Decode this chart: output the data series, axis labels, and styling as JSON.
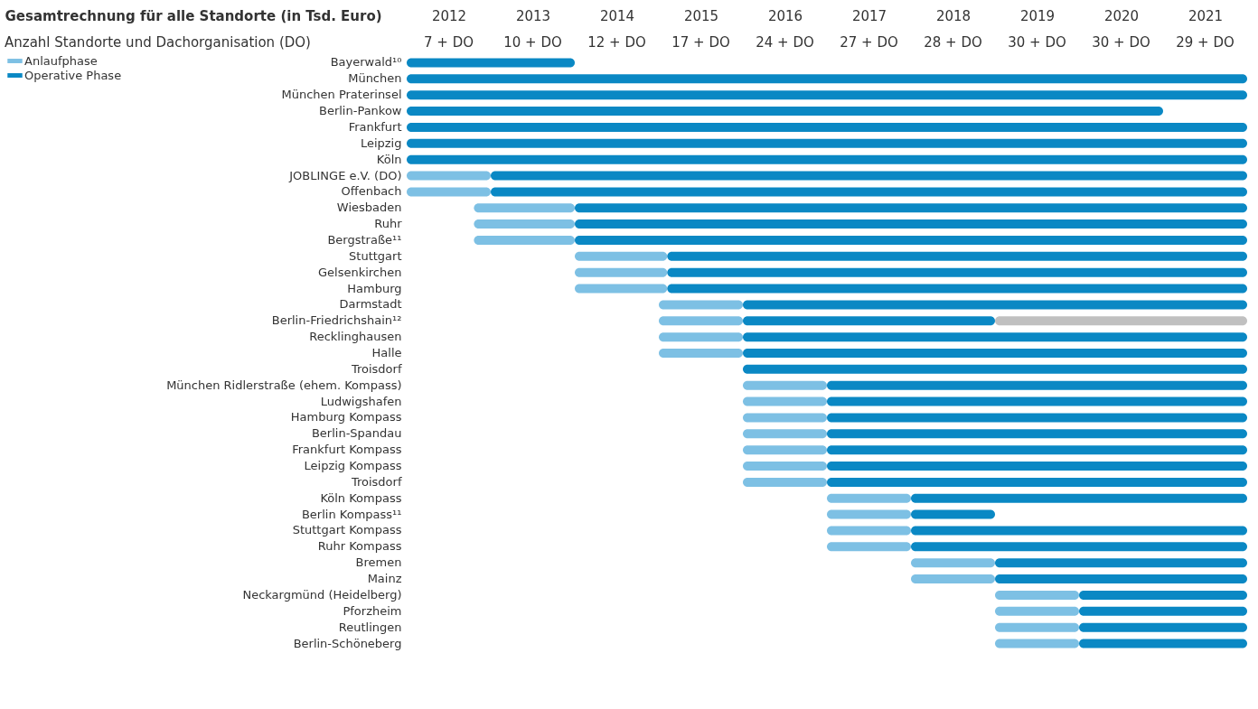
{
  "chart_data": {
    "type": "bar",
    "orientation": "horizontal",
    "xlabel": "Gesamtrechnung für alle Standorte (in Tsd. Euro)",
    "annotations": [
      "Anzahl Standorte und Dachorganisation (DO)",
      "7 + DO",
      "10 + DO",
      "12 + DO",
      "17 + DO",
      "24 + DO",
      "27 + DO",
      "28 + DO",
      "30 + DO",
      "30 + DO",
      "29 + DO"
    ],
    "categories": [
      "Bayerwald¹⁰",
      "München",
      "München Praterinsel",
      "Berlin-Pankow",
      "Frankfurt",
      "Leipzig",
      "Köln",
      "JOBLINGE e.V. (DO)",
      "Offenbach",
      "Wiesbaden",
      "Ruhr",
      "Bergstraße¹¹",
      "Stuttgart",
      "Gelsenkirchen",
      "Hamburg",
      "Darmstadt",
      "Berlin-Friedrichshain¹²",
      "Recklinghausen",
      "Halle",
      "Troisdorf",
      "München Ridlerstraße (ehem. Kompass)",
      "Ludwigshafen",
      "Hamburg Kompass",
      "Berlin-Spandau",
      "Frankfurt Kompass",
      "Leipzig Kompass",
      "Troisdorf",
      "Köln Kompass",
      "Berlin Kompass¹¹",
      "Stuttgart Kompass",
      "Ruhr Kompass",
      "Bremen",
      "Mainz",
      "Neckargmünd (Heidelberg)",
      "Pforzheim",
      "Reutlingen",
      "Berlin-Schöneberg"
    ],
    "xlim": [
      2012,
      2022
    ],
    "xticks": [
      {
        "value": 2012.5,
        "label": "2012"
      },
      {
        "value": 2013.5,
        "label": "2013"
      },
      {
        "value": 2014.5,
        "label": "2014"
      },
      {
        "value": 2015.5,
        "label": "2015"
      },
      {
        "value": 2016.5,
        "label": "2016"
      },
      {
        "value": 2017.5,
        "label": "2017"
      },
      {
        "value": 2018.5,
        "label": "2018"
      },
      {
        "value": 2019.5,
        "label": "2019"
      },
      {
        "value": 2020.5,
        "label": "2020"
      },
      {
        "value": 2021.5,
        "label": "2021"
      }
    ],
    "series": [
      {
        "name": "Anlaufphase",
        "color": "#7dc0e4",
        "base": [
          null,
          null,
          null,
          null,
          null,
          null,
          null,
          2012,
          2012,
          2012.8,
          2012.8,
          2012.8,
          2014,
          2014,
          2014,
          2015,
          2015,
          2015,
          2015,
          null,
          2016,
          2016,
          2016,
          2016,
          2016,
          2016,
          2016,
          2017,
          2017,
          2017,
          2017,
          2018,
          2018,
          2019,
          2019,
          2019,
          2019
        ],
        "values": [
          null,
          null,
          null,
          null,
          null,
          null,
          null,
          1,
          1,
          1.2,
          1.2,
          1.2,
          1.1,
          1.1,
          1.1,
          1,
          1,
          1,
          1,
          null,
          1,
          1,
          1,
          1,
          1,
          1,
          1,
          1,
          1,
          1,
          1,
          1,
          1,
          1,
          1,
          1,
          1
        ]
      },
      {
        "name": "Operative Phase",
        "color": "#0a88c4",
        "base": [
          2012,
          2012,
          2012,
          2012,
          2012,
          2012,
          2012,
          2013,
          2013,
          2014,
          2014,
          2014,
          2015.1,
          2015.1,
          2015.1,
          2016,
          2016,
          2016,
          2016,
          2016,
          2017,
          2017,
          2017,
          2017,
          2017,
          2017,
          2017,
          2018,
          2018,
          2018,
          2018,
          2019,
          2019,
          2020,
          2020,
          2020,
          2020
        ],
        "values": [
          2,
          10,
          10,
          9,
          10,
          10,
          10,
          9,
          9,
          8,
          8,
          8,
          6.9,
          6.9,
          6.9,
          6,
          3,
          6,
          6,
          6,
          5,
          5,
          5,
          5,
          5,
          5,
          5,
          4,
          1,
          4,
          4,
          3,
          3,
          2,
          2,
          2,
          2
        ]
      },
      {
        "color": "#c0c0c0",
        "base": [
          null,
          null,
          null,
          null,
          null,
          null,
          null,
          null,
          null,
          null,
          null,
          null,
          null,
          null,
          null,
          null,
          2019,
          null,
          null,
          null,
          null,
          null,
          null,
          null,
          null,
          null,
          null,
          null,
          null,
          null,
          null,
          null,
          null,
          null,
          null,
          null,
          null
        ],
        "values": [
          null,
          null,
          null,
          null,
          null,
          null,
          null,
          null,
          null,
          null,
          null,
          null,
          null,
          null,
          null,
          null,
          3,
          null,
          null,
          null,
          null,
          null,
          null,
          null,
          null,
          null,
          null,
          null,
          null,
          null,
          null,
          null,
          null,
          null,
          null,
          null,
          null
        ]
      }
    ],
    "legend": "top left",
    "grid": false
  }
}
